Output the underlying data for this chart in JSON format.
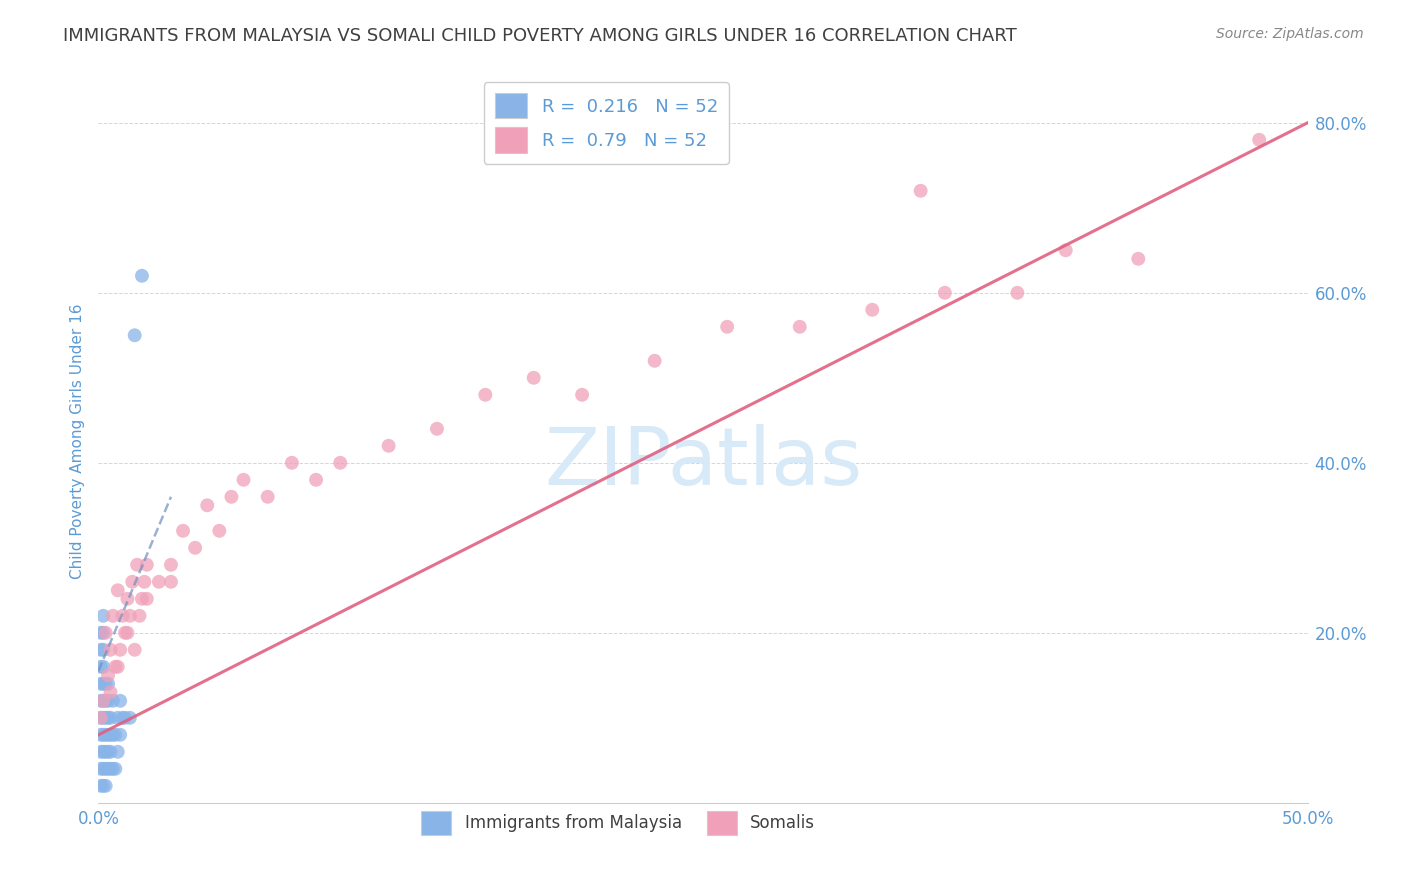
{
  "title": "IMMIGRANTS FROM MALAYSIA VS SOMALI CHILD POVERTY AMONG GIRLS UNDER 16 CORRELATION CHART",
  "source": "Source: ZipAtlas.com",
  "ylabel": "Child Poverty Among Girls Under 16",
  "xlabel": "",
  "xlim": [
    0,
    0.5
  ],
  "ylim": [
    0,
    0.85
  ],
  "xticks": [
    0.0,
    0.1,
    0.2,
    0.3,
    0.4,
    0.5
  ],
  "yticks": [
    0.0,
    0.2,
    0.4,
    0.6,
    0.8
  ],
  "ytick_labels": [
    "",
    "20.0%",
    "40.0%",
    "60.0%",
    "80.0%"
  ],
  "xtick_labels": [
    "0.0%",
    "",
    "",
    "",
    "",
    "50.0%"
  ],
  "R_blue": 0.216,
  "R_pink": 0.79,
  "N_blue": 52,
  "N_pink": 52,
  "blue_color": "#89b4e8",
  "pink_color": "#f0a0b8",
  "trend_blue_color": "#7090c0",
  "trend_pink_color": "#e06080",
  "title_color": "#404040",
  "axis_label_color": "#5b9bd5",
  "watermark_color": "#d8eaf8",
  "legend_color": "#5b9bd5",
  "blue_scatter_x": [
    0.001,
    0.001,
    0.001,
    0.001,
    0.001,
    0.001,
    0.001,
    0.001,
    0.001,
    0.001,
    0.002,
    0.002,
    0.002,
    0.002,
    0.002,
    0.002,
    0.002,
    0.002,
    0.002,
    0.002,
    0.002,
    0.003,
    0.003,
    0.003,
    0.003,
    0.003,
    0.003,
    0.003,
    0.004,
    0.004,
    0.004,
    0.004,
    0.004,
    0.004,
    0.005,
    0.005,
    0.005,
    0.005,
    0.006,
    0.006,
    0.006,
    0.007,
    0.007,
    0.008,
    0.008,
    0.009,
    0.009,
    0.01,
    0.011,
    0.013,
    0.015,
    0.018
  ],
  "blue_scatter_y": [
    0.02,
    0.04,
    0.06,
    0.08,
    0.1,
    0.12,
    0.14,
    0.16,
    0.18,
    0.2,
    0.02,
    0.04,
    0.06,
    0.08,
    0.1,
    0.12,
    0.14,
    0.16,
    0.18,
    0.2,
    0.22,
    0.02,
    0.04,
    0.06,
    0.08,
    0.1,
    0.12,
    0.14,
    0.04,
    0.06,
    0.08,
    0.1,
    0.12,
    0.14,
    0.04,
    0.06,
    0.08,
    0.1,
    0.04,
    0.08,
    0.12,
    0.04,
    0.08,
    0.06,
    0.1,
    0.08,
    0.12,
    0.1,
    0.1,
    0.1,
    0.55,
    0.62
  ],
  "pink_scatter_x": [
    0.001,
    0.002,
    0.003,
    0.004,
    0.005,
    0.006,
    0.007,
    0.008,
    0.009,
    0.01,
    0.011,
    0.012,
    0.013,
    0.014,
    0.015,
    0.016,
    0.017,
    0.018,
    0.019,
    0.02,
    0.025,
    0.03,
    0.035,
    0.04,
    0.045,
    0.05,
    0.055,
    0.06,
    0.07,
    0.08,
    0.09,
    0.1,
    0.12,
    0.14,
    0.16,
    0.18,
    0.2,
    0.23,
    0.26,
    0.29,
    0.32,
    0.35,
    0.38,
    0.43,
    0.48,
    0.005,
    0.008,
    0.012,
    0.02,
    0.03,
    0.34,
    0.4
  ],
  "pink_scatter_y": [
    0.1,
    0.12,
    0.2,
    0.15,
    0.18,
    0.22,
    0.16,
    0.25,
    0.18,
    0.22,
    0.2,
    0.24,
    0.22,
    0.26,
    0.18,
    0.28,
    0.22,
    0.24,
    0.26,
    0.28,
    0.26,
    0.28,
    0.32,
    0.3,
    0.35,
    0.32,
    0.36,
    0.38,
    0.36,
    0.4,
    0.38,
    0.4,
    0.42,
    0.44,
    0.48,
    0.5,
    0.48,
    0.52,
    0.56,
    0.56,
    0.58,
    0.6,
    0.6,
    0.64,
    0.78,
    0.13,
    0.16,
    0.2,
    0.24,
    0.26,
    0.72,
    0.65
  ],
  "blue_trend_x": [
    0.0,
    0.03
  ],
  "blue_trend_y": [
    0.155,
    0.36
  ],
  "pink_trend_x": [
    0.0,
    0.5
  ],
  "pink_trend_y": [
    0.08,
    0.8
  ]
}
